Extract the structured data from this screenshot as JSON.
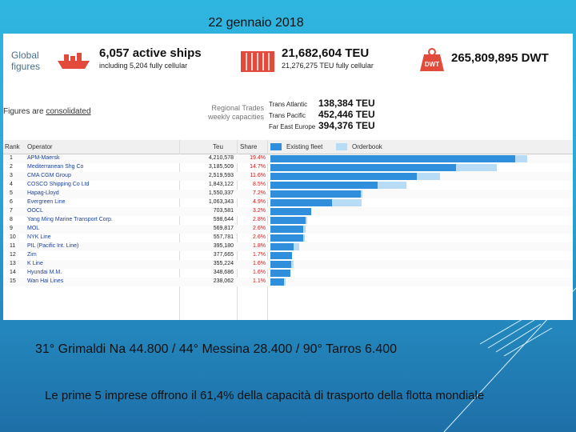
{
  "slide": {
    "date": "22 gennaio 2018",
    "line1": "31° Grimaldi Na  44.800 / 44° Messina 28.400 / 90° Tarros 6.400",
    "line2": "Le prime 5 imprese offrono il 61,4% della capacità di trasporto della flotta mondiale"
  },
  "summary": {
    "label": "Global figures",
    "ships_big": "6,057 active ships",
    "ships_small": "including 5,204 fully cellular",
    "teu_big": "21,682,604 TEU",
    "teu_small": "21,276,275 TEU fully cellular",
    "dwt_icon_text": "DWT",
    "dwt_big": "265,809,895 DWT",
    "consolidated_prefix": "Figures are ",
    "consolidated_link": "consolidated",
    "regional_label": "Regional Trades weekly capacities",
    "routes": [
      {
        "name": "Trans Atlantic",
        "value": "138,384 TEU"
      },
      {
        "name": "Trans Pacific",
        "value": "452,446 TEU"
      },
      {
        "name": "Far East Europe",
        "value": "394,376 TEU"
      }
    ]
  },
  "table": {
    "headers": {
      "rank": "Rank",
      "operator": "Operator",
      "teu": "Teu",
      "share": "Share",
      "existing": "Existing fleet",
      "orderbook": "Orderbook"
    },
    "colors": {
      "existing": "#2f8fdc",
      "orderbook": "#b9dcf6",
      "share": "#d01818"
    },
    "rows": [
      {
        "rank": "1",
        "operator": "APM-Maersk",
        "teu": "4,210,578",
        "share": "19.4%",
        "fleet": 4210578,
        "order": 200000
      },
      {
        "rank": "2",
        "operator": "Mediterranean Shg Co",
        "teu": "3,185,509",
        "share": "14.7%",
        "fleet": 3185509,
        "order": 700000
      },
      {
        "rank": "3",
        "operator": "CMA CGM Group",
        "teu": "2,519,593",
        "share": "11.6%",
        "fleet": 2519593,
        "order": 400000
      },
      {
        "rank": "4",
        "operator": "COSCO Shipping Co Ltd",
        "teu": "1,843,122",
        "share": "8.5%",
        "fleet": 1843122,
        "order": 500000
      },
      {
        "rank": "5",
        "operator": "Hapag-Lloyd",
        "teu": "1,550,337",
        "share": "7.2%",
        "fleet": 1550337,
        "order": 30000
      },
      {
        "rank": "6",
        "operator": "Evergreen Line",
        "teu": "1,063,343",
        "share": "4.9%",
        "fleet": 1063343,
        "order": 500000
      },
      {
        "rank": "7",
        "operator": "OOCL",
        "teu": "703,581",
        "share": "3.2%",
        "fleet": 703581,
        "order": 0
      },
      {
        "rank": "8",
        "operator": "Yang Ming Marine Transport Corp.",
        "teu": "598,644",
        "share": "2.8%",
        "fleet": 598644,
        "order": 40000
      },
      {
        "rank": "9",
        "operator": "MOL",
        "teu": "569,817",
        "share": "2.6%",
        "fleet": 569817,
        "order": 30000
      },
      {
        "rank": "10",
        "operator": "NYK Line",
        "teu": "557,781",
        "share": "2.6%",
        "fleet": 557781,
        "order": 40000
      },
      {
        "rank": "11",
        "operator": "PIL (Pacific Int. Line)",
        "teu": "395,180",
        "share": "1.8%",
        "fleet": 395180,
        "order": 100000
      },
      {
        "rank": "12",
        "operator": "Zim",
        "teu": "377,665",
        "share": "1.7%",
        "fleet": 377665,
        "order": 0
      },
      {
        "rank": "13",
        "operator": "K Line",
        "teu": "355,224",
        "share": "1.6%",
        "fleet": 355224,
        "order": 40000
      },
      {
        "rank": "14",
        "operator": "Hyundai M.M.",
        "teu": "348,686",
        "share": "1.6%",
        "fleet": 348686,
        "order": 0
      },
      {
        "rank": "15",
        "operator": "Wan Hai Lines",
        "teu": "238,062",
        "share": "1.1%",
        "fleet": 238062,
        "order": 30000
      }
    ]
  }
}
